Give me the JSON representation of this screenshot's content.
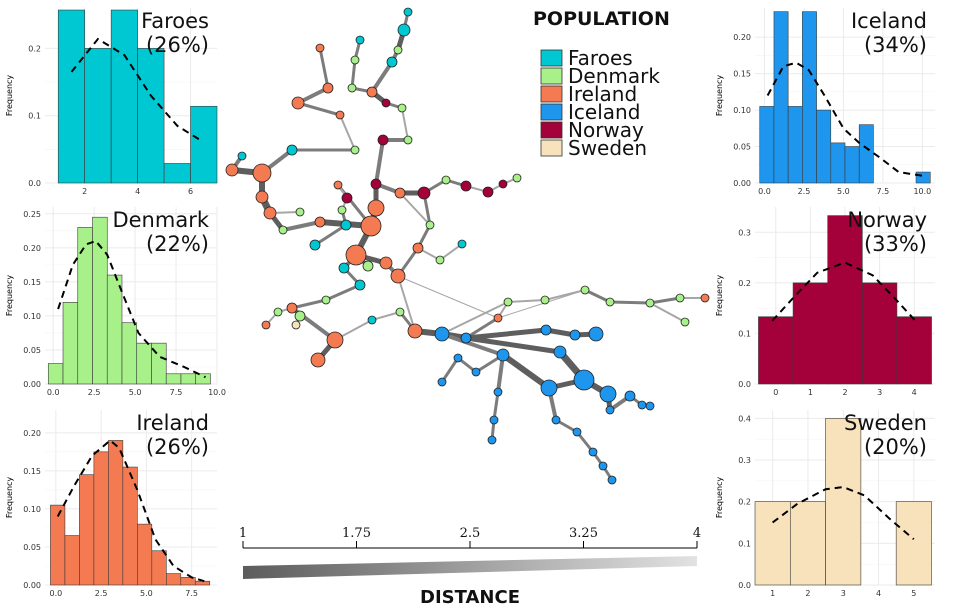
{
  "legend": {
    "title": "POPULATION",
    "entries": [
      {
        "name": "Faroes",
        "color": "#00c8d2"
      },
      {
        "name": "Denmark",
        "color": "#a8f08a"
      },
      {
        "name": "Ireland",
        "color": "#f47a52"
      },
      {
        "name": "Iceland",
        "color": "#1e96ee"
      },
      {
        "name": "Norway",
        "color": "#a4003a"
      },
      {
        "name": "Sweden",
        "color": "#f8e2bc"
      }
    ]
  },
  "distance_scale": {
    "title": "DISTANCE",
    "ticks": [
      "1",
      "1.75",
      "2.5",
      "3.25",
      "4"
    ],
    "range": [
      1,
      4
    ]
  },
  "chart_data": [
    {
      "type": "bar",
      "panel": "Faroes",
      "label_name": "Faroes",
      "label_pct": "(26%)",
      "color": "#00c8d2",
      "ylabel": "Frequency",
      "xlim": [
        0.5,
        7
      ],
      "ylim": [
        0,
        0.26
      ],
      "xticks": [
        2,
        4,
        6
      ],
      "xtick_labels": [
        "2",
        "4",
        "6"
      ],
      "yticks": [
        0,
        0.1,
        0.2
      ],
      "ytick_labels": [
        "0.0",
        "0.1",
        "0.2"
      ],
      "bins": [
        {
          "x0": 1,
          "x1": 2,
          "y": 0.257
        },
        {
          "x0": 2,
          "x1": 3,
          "y": 0.2
        },
        {
          "x0": 3,
          "x1": 4,
          "y": 0.257
        },
        {
          "x0": 4,
          "x1": 5,
          "y": 0.2
        },
        {
          "x0": 5,
          "x1": 6,
          "y": 0.029
        },
        {
          "x0": 6,
          "x1": 7,
          "y": 0.114
        }
      ],
      "density": [
        [
          1.5,
          0.165
        ],
        [
          2.5,
          0.214
        ],
        [
          3.5,
          0.19
        ],
        [
          4.5,
          0.13
        ],
        [
          5.5,
          0.085
        ],
        [
          6.4,
          0.063
        ]
      ]
    },
    {
      "type": "bar",
      "panel": "Denmark",
      "label_name": "Denmark",
      "label_pct": "(22%)",
      "color": "#a8f08a",
      "ylabel": "Frequency",
      "xlim": [
        -0.5,
        10
      ],
      "ylim": [
        0,
        0.26
      ],
      "xticks": [
        0,
        2.5,
        5,
        7.5,
        10
      ],
      "xtick_labels": [
        "0.0",
        "2.5",
        "5.0",
        "7.5",
        "10.0"
      ],
      "yticks": [
        0,
        0.05,
        0.1,
        0.15,
        0.2,
        0.25
      ],
      "ytick_labels": [
        "0.00",
        "0.05",
        "0.10",
        "0.15",
        "0.20",
        "0.25"
      ],
      "bins": [
        {
          "x0": -0.3,
          "x1": 0.6,
          "y": 0.03
        },
        {
          "x0": 0.6,
          "x1": 1.5,
          "y": 0.12
        },
        {
          "x0": 1.5,
          "x1": 2.4,
          "y": 0.23
        },
        {
          "x0": 2.4,
          "x1": 3.3,
          "y": 0.245
        },
        {
          "x0": 3.3,
          "x1": 4.2,
          "y": 0.16
        },
        {
          "x0": 4.2,
          "x1": 5.1,
          "y": 0.09
        },
        {
          "x0": 5.1,
          "x1": 6.0,
          "y": 0.06
        },
        {
          "x0": 6.0,
          "x1": 6.9,
          "y": 0.06
        },
        {
          "x0": 6.9,
          "x1": 7.8,
          "y": 0.015
        },
        {
          "x0": 7.8,
          "x1": 8.7,
          "y": 0.015
        },
        {
          "x0": 8.7,
          "x1": 9.6,
          "y": 0.015
        }
      ],
      "density": [
        [
          0.3,
          0.11
        ],
        [
          1.2,
          0.175
        ],
        [
          2.0,
          0.205
        ],
        [
          2.6,
          0.21
        ],
        [
          3.3,
          0.19
        ],
        [
          4.2,
          0.135
        ],
        [
          5.2,
          0.075
        ],
        [
          6.5,
          0.04
        ],
        [
          8.0,
          0.025
        ],
        [
          9.3,
          0.01
        ]
      ]
    },
    {
      "type": "bar",
      "panel": "Ireland",
      "label_name": "Ireland",
      "label_pct": "(26%)",
      "color": "#f47a52",
      "ylabel": "Frequency",
      "xlim": [
        -0.6,
        8.9
      ],
      "ylim": [
        0,
        0.23
      ],
      "xticks": [
        0,
        2.5,
        5,
        7.5
      ],
      "xtick_labels": [
        "0.0",
        "2.5",
        "5.0",
        "7.5"
      ],
      "yticks": [
        0,
        0.05,
        0.1,
        0.15,
        0.2
      ],
      "ytick_labels": [
        "0.00",
        "0.05",
        "0.10",
        "0.15",
        "0.20"
      ],
      "bins": [
        {
          "x0": -0.3,
          "x1": 0.5,
          "y": 0.105
        },
        {
          "x0": 0.5,
          "x1": 1.3,
          "y": 0.065
        },
        {
          "x0": 1.3,
          "x1": 2.1,
          "y": 0.145
        },
        {
          "x0": 2.1,
          "x1": 2.9,
          "y": 0.175
        },
        {
          "x0": 2.9,
          "x1": 3.7,
          "y": 0.19
        },
        {
          "x0": 3.7,
          "x1": 4.5,
          "y": 0.155
        },
        {
          "x0": 4.5,
          "x1": 5.3,
          "y": 0.08
        },
        {
          "x0": 5.3,
          "x1": 6.1,
          "y": 0.045
        },
        {
          "x0": 6.1,
          "x1": 6.9,
          "y": 0.015
        },
        {
          "x0": 6.9,
          "x1": 7.7,
          "y": 0.01
        },
        {
          "x0": 7.7,
          "x1": 8.5,
          "y": 0.005
        }
      ],
      "density": [
        [
          0.1,
          0.09
        ],
        [
          1.0,
          0.13
        ],
        [
          2.0,
          0.17
        ],
        [
          3.0,
          0.19
        ],
        [
          3.5,
          0.18
        ],
        [
          4.5,
          0.125
        ],
        [
          5.5,
          0.06
        ],
        [
          6.5,
          0.025
        ],
        [
          7.5,
          0.01
        ],
        [
          8.2,
          0.005
        ]
      ]
    },
    {
      "type": "bar",
      "panel": "Iceland",
      "label_name": "Iceland",
      "label_pct": "(34%)",
      "color": "#1e96ee",
      "ylabel": "Frequency",
      "xlim": [
        -0.6,
        10.8
      ],
      "ylim": [
        0,
        0.24
      ],
      "xticks": [
        0,
        2.5,
        5,
        7.5,
        10
      ],
      "xtick_labels": [
        "0.0",
        "2.5",
        "5.0",
        "7.5",
        "10.0"
      ],
      "yticks": [
        0,
        0.05,
        0.1,
        0.15,
        0.2
      ],
      "ytick_labels": [
        "0.00",
        "0.05",
        "0.10",
        "0.15",
        "0.20"
      ],
      "bins": [
        {
          "x0": -0.3,
          "x1": 0.6,
          "y": 0.105
        },
        {
          "x0": 0.6,
          "x1": 1.5,
          "y": 0.235
        },
        {
          "x0": 1.5,
          "x1": 2.4,
          "y": 0.105
        },
        {
          "x0": 2.4,
          "x1": 3.3,
          "y": 0.235
        },
        {
          "x0": 3.3,
          "x1": 4.2,
          "y": 0.1
        },
        {
          "x0": 4.2,
          "x1": 5.1,
          "y": 0.055
        },
        {
          "x0": 5.1,
          "x1": 6.0,
          "y": 0.05
        },
        {
          "x0": 6.0,
          "x1": 6.9,
          "y": 0.08
        },
        {
          "x0": 9.6,
          "x1": 10.5,
          "y": 0.015
        }
      ],
      "density": [
        [
          0.2,
          0.12
        ],
        [
          1.2,
          0.16
        ],
        [
          2.0,
          0.165
        ],
        [
          2.8,
          0.155
        ],
        [
          3.8,
          0.12
        ],
        [
          5.0,
          0.075
        ],
        [
          6.0,
          0.055
        ],
        [
          7.3,
          0.035
        ],
        [
          8.5,
          0.015
        ],
        [
          10.0,
          0.01
        ]
      ]
    },
    {
      "type": "bar",
      "panel": "Norway",
      "label_name": "Norway",
      "label_pct": "(33%)",
      "color": "#a4003a",
      "ylabel": "Frequency",
      "xlim": [
        -0.6,
        4.6
      ],
      "ylim": [
        0,
        0.35
      ],
      "xticks": [
        0,
        1,
        2,
        3,
        4
      ],
      "xtick_labels": [
        "0",
        "1",
        "2",
        "3",
        "4"
      ],
      "yticks": [
        0,
        0.1,
        0.2,
        0.3
      ],
      "ytick_labels": [
        "0.0",
        "0.1",
        "0.2",
        "0.3"
      ],
      "bins": [
        {
          "x0": -0.5,
          "x1": 0.5,
          "y": 0.133
        },
        {
          "x0": 0.5,
          "x1": 1.5,
          "y": 0.2
        },
        {
          "x0": 1.5,
          "x1": 2.5,
          "y": 0.333
        },
        {
          "x0": 2.5,
          "x1": 3.5,
          "y": 0.2
        },
        {
          "x0": 3.5,
          "x1": 4.5,
          "y": 0.133
        }
      ],
      "density": [
        [
          -0.1,
          0.125
        ],
        [
          0.5,
          0.17
        ],
        [
          1.2,
          0.22
        ],
        [
          2.0,
          0.24
        ],
        [
          2.8,
          0.215
        ],
        [
          3.5,
          0.165
        ],
        [
          4.1,
          0.12
        ]
      ]
    },
    {
      "type": "bar",
      "panel": "Sweden",
      "label_name": "Sweden",
      "label_pct": "(20%)",
      "color": "#f8e2bc",
      "ylabel": "Frequency",
      "xlim": [
        0.5,
        5.6
      ],
      "ylim": [
        0,
        0.42
      ],
      "xticks": [
        1,
        2,
        3,
        4,
        5
      ],
      "xtick_labels": [
        "1",
        "2",
        "3",
        "4",
        "5"
      ],
      "yticks": [
        0,
        0.1,
        0.2,
        0.3,
        0.4
      ],
      "ytick_labels": [
        "0.0",
        "0.1",
        "0.2",
        "0.3",
        "0.4"
      ],
      "bins": [
        {
          "x0": 0.5,
          "x1": 1.5,
          "y": 0.2
        },
        {
          "x0": 1.5,
          "x1": 2.5,
          "y": 0.2
        },
        {
          "x0": 2.5,
          "x1": 3.5,
          "y": 0.4
        },
        {
          "x0": 4.5,
          "x1": 5.5,
          "y": 0.2
        }
      ],
      "density": [
        [
          1.0,
          0.15
        ],
        [
          1.7,
          0.195
        ],
        [
          2.5,
          0.23
        ],
        [
          3.0,
          0.235
        ],
        [
          3.6,
          0.215
        ],
        [
          4.3,
          0.16
        ],
        [
          5.0,
          0.11
        ]
      ]
    }
  ]
}
